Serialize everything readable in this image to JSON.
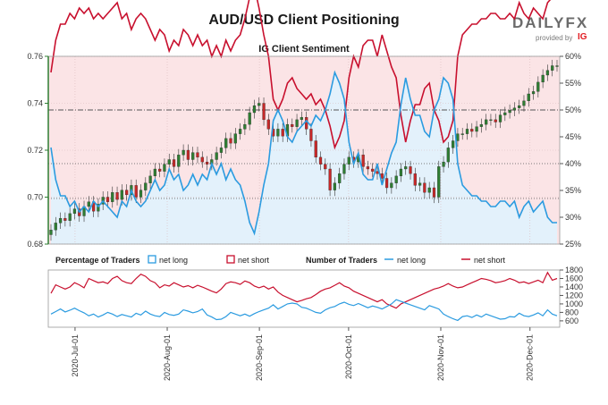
{
  "title": "AUD/USD Client Positioning",
  "brand": {
    "word": "DAILYFX",
    "sub": "provided by",
    "ig": "IG"
  },
  "colors": {
    "net_long": "#2b9be0",
    "net_short": "#c8102e",
    "bg_long": "#e3f1fb",
    "bg_short": "#fbe4e6",
    "candle_up": "#2e7d32",
    "candle_down": "#c62828",
    "axis_price": "#2e7d32"
  },
  "chart_data": [
    {
      "type": "candlestick+area",
      "title": "IG Client Sentiment",
      "ylim": [
        0.68,
        0.76
      ],
      "yticks": [
        "0.68",
        "0.70",
        "0.72",
        "0.74",
        "0.76"
      ],
      "y2lim": [
        25,
        60
      ],
      "y2ticks": [
        "25%",
        "30%",
        "35%",
        "40%",
        "45%",
        "50%",
        "55%",
        "60%"
      ],
      "x_ticks": [
        "2020-Jul-01",
        "2020-Aug-01",
        "2020-Sep-01",
        "2020-Oct-01",
        "2020-Nov-01",
        "2020-Dec-01"
      ],
      "x_start": "2020-06-22",
      "x_end": "2020-12-11",
      "reference_lines": [
        {
          "axis": "y2",
          "value": 50,
          "style": "dash-dot"
        },
        {
          "axis": "y2",
          "value": 40,
          "style": "dotted"
        },
        {
          "axis": "y2",
          "value": 33.5,
          "style": "dotted"
        }
      ],
      "price_close": [
        0.686,
        0.689,
        0.691,
        0.69,
        0.693,
        0.695,
        0.692,
        0.696,
        0.698,
        0.694,
        0.697,
        0.7,
        0.698,
        0.702,
        0.699,
        0.703,
        0.701,
        0.705,
        0.7,
        0.703,
        0.706,
        0.709,
        0.712,
        0.711,
        0.714,
        0.716,
        0.713,
        0.718,
        0.72,
        0.716,
        0.719,
        0.717,
        0.715,
        0.714,
        0.716,
        0.719,
        0.721,
        0.725,
        0.723,
        0.727,
        0.729,
        0.731,
        0.736,
        0.739,
        0.74,
        0.733,
        0.729,
        0.726,
        0.729,
        0.726,
        0.731,
        0.73,
        0.733,
        0.734,
        0.729,
        0.724,
        0.717,
        0.714,
        0.712,
        0.703,
        0.706,
        0.71,
        0.714,
        0.717,
        0.715,
        0.718,
        0.713,
        0.712,
        0.711,
        0.71,
        0.708,
        0.704,
        0.706,
        0.709,
        0.712,
        0.713,
        0.71,
        0.705,
        0.706,
        0.702,
        0.704,
        0.7,
        0.713,
        0.715,
        0.721,
        0.724,
        0.727,
        0.727,
        0.729,
        0.728,
        0.73,
        0.731,
        0.733,
        0.733,
        0.732,
        0.735,
        0.736,
        0.737,
        0.738,
        0.739,
        0.741,
        0.744,
        0.745,
        0.749,
        0.752,
        0.754,
        0.756,
        0.756
      ],
      "series": [
        {
          "name": "net long",
          "pct": [
            43,
            37,
            34,
            34,
            32,
            33,
            31,
            32,
            31,
            33,
            32,
            33,
            32,
            31,
            30,
            33,
            32,
            35,
            33,
            32,
            33,
            35,
            37,
            35,
            36,
            39,
            37,
            38,
            35,
            36,
            38,
            36,
            38,
            37,
            40,
            38,
            40,
            37,
            39,
            37,
            36,
            33,
            29,
            27,
            31,
            36,
            40,
            48,
            50,
            48,
            45,
            44,
            46,
            47,
            48,
            47,
            49,
            48,
            50,
            53,
            57,
            55,
            52,
            44,
            40,
            42,
            38,
            37,
            37,
            40,
            36,
            39,
            42,
            44,
            51,
            56,
            52,
            49,
            49,
            46,
            45,
            50,
            52,
            56,
            55,
            52,
            40,
            36,
            35,
            34,
            34,
            33,
            33,
            32,
            32,
            33,
            33,
            32,
            33,
            30,
            32,
            33,
            31,
            32,
            33,
            30,
            29,
            29
          ]
        },
        {
          "name": "net short",
          "pct": [
            57,
            63,
            66,
            66,
            68,
            67,
            69,
            68,
            69,
            67,
            68,
            67,
            68,
            69,
            70,
            67,
            68,
            65,
            67,
            68,
            67,
            65,
            63,
            65,
            64,
            61,
            63,
            62,
            65,
            64,
            62,
            64,
            62,
            63,
            60,
            62,
            60,
            63,
            61,
            63,
            64,
            67,
            71,
            73,
            69,
            64,
            60,
            52,
            50,
            52,
            55,
            56,
            54,
            53,
            52,
            53,
            51,
            52,
            50,
            47,
            43,
            45,
            48,
            56,
            60,
            58,
            62,
            63,
            63,
            60,
            64,
            61,
            58,
            56,
            49,
            44,
            48,
            51,
            51,
            54,
            55,
            50,
            48,
            44,
            45,
            48,
            60,
            64,
            65,
            66,
            66,
            67,
            67,
            68,
            68,
            67,
            67,
            68,
            67,
            70,
            68,
            67,
            69,
            68,
            67,
            70,
            71,
            71
          ]
        }
      ]
    },
    {
      "type": "line",
      "title": "Number of Traders",
      "ylim": [
        450,
        1800
      ],
      "yticks": [
        "600",
        "800",
        "1000",
        "1200",
        "1400",
        "1600",
        "1800"
      ],
      "series": [
        {
          "name": "net long",
          "values": [
            760,
            820,
            880,
            810,
            850,
            900,
            840,
            790,
            720,
            760,
            690,
            740,
            800,
            760,
            700,
            750,
            720,
            690,
            780,
            740,
            830,
            760,
            720,
            700,
            800,
            750,
            730,
            760,
            860,
            830,
            790,
            820,
            880,
            740,
            690,
            630,
            640,
            700,
            800,
            760,
            720,
            760,
            710,
            770,
            820,
            860,
            900,
            980,
            880,
            940,
            1000,
            1020,
            1000,
            920,
            900,
            850,
            800,
            780,
            860,
            910,
            940,
            1000,
            1040,
            990,
            960,
            1010,
            960,
            910,
            950,
            920,
            880,
            940,
            1000,
            1100,
            1060,
            1020,
            980,
            940,
            900,
            860,
            960,
            920,
            880,
            760,
            700,
            650,
            610,
            700,
            720,
            680,
            740,
            690,
            760,
            720,
            680,
            640,
            650,
            700,
            690,
            780,
            720,
            700,
            740,
            790,
            720,
            860,
            760,
            720
          ]
        },
        {
          "name": "net short",
          "values": [
            1250,
            1450,
            1400,
            1350,
            1400,
            1500,
            1450,
            1380,
            1600,
            1550,
            1500,
            1520,
            1480,
            1600,
            1650,
            1550,
            1500,
            1480,
            1600,
            1700,
            1650,
            1550,
            1500,
            1380,
            1450,
            1420,
            1500,
            1450,
            1400,
            1430,
            1380,
            1440,
            1400,
            1350,
            1300,
            1260,
            1350,
            1480,
            1520,
            1500,
            1460,
            1540,
            1500,
            1420,
            1380,
            1420,
            1350,
            1400,
            1280,
            1200,
            1150,
            1100,
            1050,
            1080,
            1120,
            1150,
            1220,
            1300,
            1350,
            1380,
            1440,
            1500,
            1420,
            1380,
            1300,
            1250,
            1200,
            1150,
            1100,
            1050,
            1100,
            1000,
            950,
            900,
            1000,
            1050,
            1100,
            1150,
            1200,
            1250,
            1300,
            1350,
            1380,
            1420,
            1480,
            1420,
            1380,
            1400,
            1450,
            1500,
            1550,
            1600,
            1580,
            1550,
            1500,
            1520,
            1550,
            1600,
            1560,
            1500,
            1520,
            1480,
            1520,
            1560,
            1500,
            1740,
            1560,
            1600
          ]
        }
      ]
    }
  ],
  "legend_pct": {
    "title": "Percentage of Traders",
    "long": "net long",
    "short": "net short"
  },
  "legend_num": {
    "title": "Number of Traders",
    "long": "net long",
    "short": "net short"
  }
}
